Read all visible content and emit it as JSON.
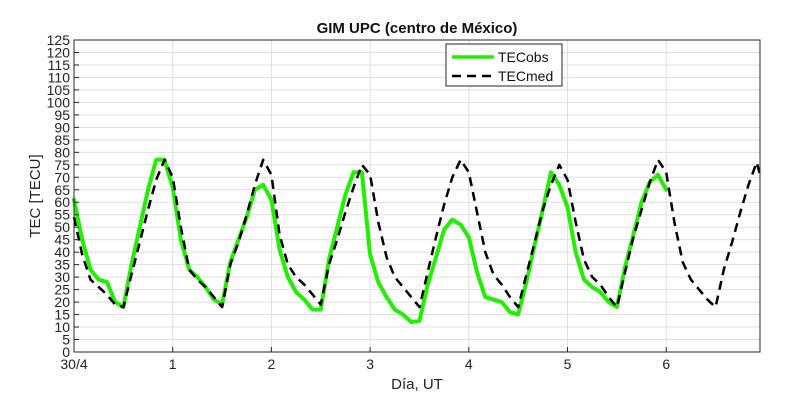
{
  "chart_data": {
    "type": "line",
    "title": "GIM UPC (centro de México)",
    "xlabel": "Día, UT",
    "ylabel": "TEC [TECU]",
    "xlim": [
      0,
      6.95
    ],
    "ylim": [
      0,
      125
    ],
    "x_ticks": [
      {
        "value": 0,
        "label": "30/4"
      },
      {
        "value": 1,
        "label": "1"
      },
      {
        "value": 2,
        "label": "2"
      },
      {
        "value": 3,
        "label": "3"
      },
      {
        "value": 4,
        "label": "4"
      },
      {
        "value": 5,
        "label": "5"
      },
      {
        "value": 6,
        "label": "6"
      }
    ],
    "y_ticks": [
      0,
      5,
      10,
      15,
      20,
      25,
      30,
      35,
      40,
      45,
      50,
      55,
      60,
      65,
      70,
      75,
      80,
      85,
      90,
      95,
      100,
      105,
      110,
      115,
      120,
      125
    ],
    "grid": true,
    "legend_position": "top-right",
    "series": [
      {
        "name": "TECobs",
        "color": "#22ee00",
        "style": "solid",
        "x": [
          0.0,
          0.083,
          0.167,
          0.25,
          0.333,
          0.417,
          0.5,
          0.583,
          0.667,
          0.75,
          0.833,
          0.917,
          1.0,
          1.083,
          1.167,
          1.25,
          1.333,
          1.417,
          1.5,
          1.583,
          1.667,
          1.75,
          1.833,
          1.917,
          2.0,
          2.083,
          2.167,
          2.25,
          2.333,
          2.417,
          2.5,
          2.583,
          2.667,
          2.75,
          2.833,
          2.917,
          3.0,
          3.083,
          3.167,
          3.25,
          3.333,
          3.417,
          3.5,
          3.583,
          3.667,
          3.75,
          3.833,
          3.917,
          4.0,
          4.083,
          4.167,
          4.25,
          4.333,
          4.417,
          4.5,
          4.583,
          4.667,
          4.75,
          4.833,
          4.917,
          5.0,
          5.083,
          5.167,
          5.25,
          5.333,
          5.417,
          5.5,
          5.583,
          5.667,
          5.75,
          5.833,
          5.917,
          6.0
        ],
        "y": [
          61,
          45,
          33,
          29,
          28,
          20,
          18,
          35,
          50,
          65,
          77,
          77,
          66,
          45,
          33,
          30,
          26,
          21,
          19,
          36,
          45,
          54,
          65,
          67,
          61,
          41,
          30,
          24,
          21,
          17,
          17,
          37,
          50,
          63,
          72,
          72,
          39,
          28,
          22,
          17,
          15,
          12,
          12.5,
          27,
          38,
          49,
          53,
          51,
          46,
          32,
          22,
          21,
          20,
          16,
          15,
          28,
          43,
          57,
          72,
          67,
          58,
          40,
          29,
          26,
          24,
          20,
          18,
          34,
          47,
          60,
          68,
          71,
          65
        ]
      },
      {
        "name": "TECmed",
        "color": "#000000",
        "style": "dashed",
        "x": [
          0.0,
          0.083,
          0.167,
          0.25,
          0.333,
          0.417,
          0.5,
          0.583,
          0.667,
          0.75,
          0.833,
          0.917,
          1.0,
          1.083,
          1.167,
          1.25,
          1.333,
          1.417,
          1.5,
          1.583,
          1.667,
          1.75,
          1.833,
          1.917,
          2.0,
          2.083,
          2.167,
          2.25,
          2.333,
          2.417,
          2.5,
          2.583,
          2.667,
          2.75,
          2.833,
          2.917,
          3.0,
          3.083,
          3.167,
          3.25,
          3.333,
          3.417,
          3.5,
          3.583,
          3.667,
          3.75,
          3.833,
          3.917,
          4.0,
          4.083,
          4.167,
          4.25,
          4.333,
          4.417,
          4.5,
          4.583,
          4.667,
          4.75,
          4.833,
          4.917,
          5.0,
          5.083,
          5.167,
          5.25,
          5.333,
          5.417,
          5.5,
          5.583,
          5.667,
          5.75,
          5.833,
          5.917,
          6.0,
          6.083,
          6.167,
          6.25,
          6.333,
          6.417,
          6.5,
          6.583,
          6.667,
          6.75,
          6.833,
          6.917,
          6.95
        ],
        "y": [
          54,
          39,
          29,
          26,
          23,
          19,
          18,
          31,
          44,
          57,
          69,
          77,
          70,
          50,
          33,
          29,
          26,
          22,
          18,
          35,
          44,
          55,
          67,
          77,
          71,
          47,
          35,
          30,
          27,
          23,
          19,
          35,
          45,
          56,
          66,
          75,
          71,
          52,
          38,
          30,
          26,
          22,
          18,
          32,
          46,
          59,
          70,
          77,
          72,
          56,
          40,
          31,
          27,
          22,
          18,
          31,
          44,
          57,
          67,
          75,
          69,
          52,
          37,
          30,
          27,
          22,
          18,
          32,
          46,
          57,
          68,
          77,
          72,
          52,
          36,
          29,
          25,
          21,
          18,
          33,
          44,
          56,
          67,
          76,
          71
        ]
      }
    ]
  }
}
